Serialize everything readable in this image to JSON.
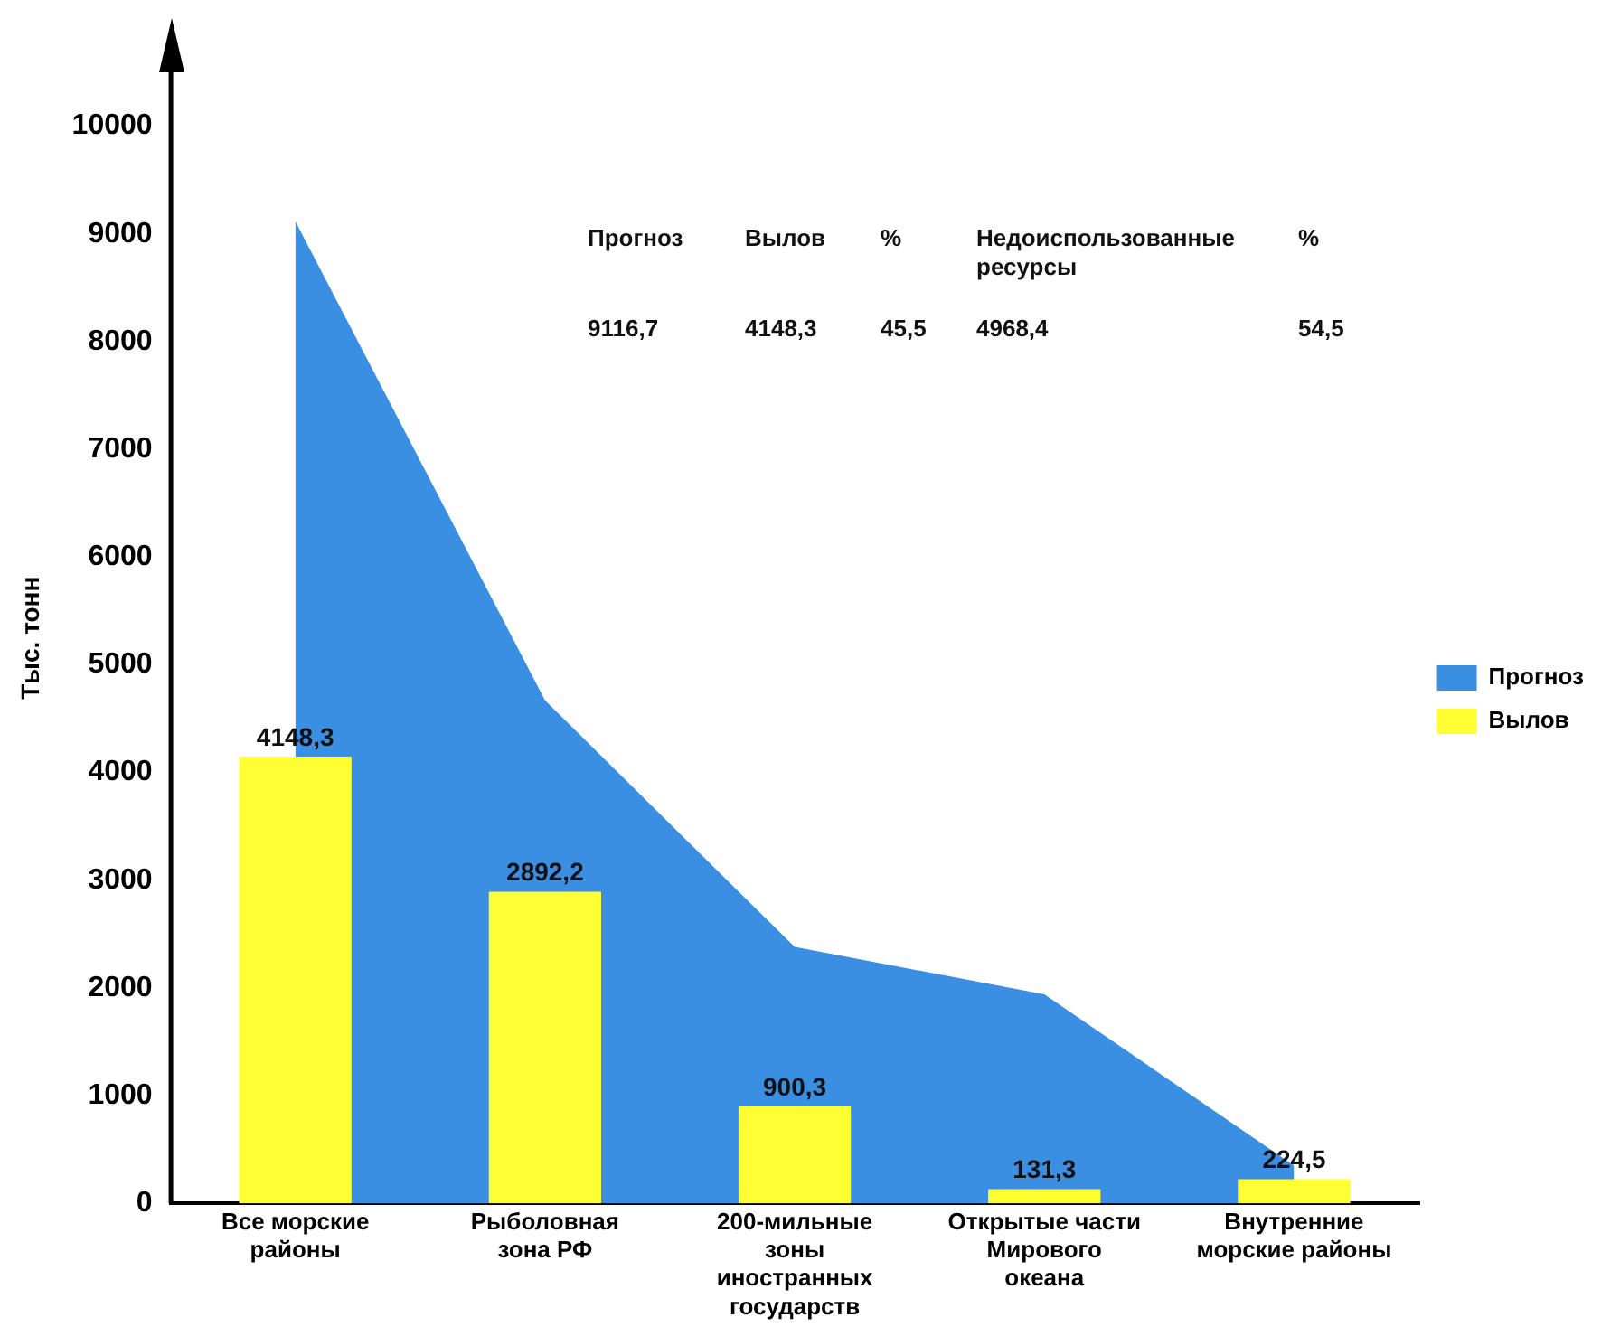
{
  "chart_data": {
    "type": "bar",
    "ylabel": "Тыс. тонн",
    "categories": [
      "Все морские районы",
      "Рыболовная зона РФ",
      "200-мильные зоны иностранных государств",
      "Открытые части Мирового океана",
      "Внутренние морские районы"
    ],
    "series": [
      {
        "name": "Прогноз",
        "type": "area",
        "color": "#3a8fe3",
        "values": [
          9116.7,
          4670,
          2380,
          1940,
          350
        ]
      },
      {
        "name": "Вылов",
        "color": "#ffff33",
        "values": [
          4148.3,
          2892.2,
          900.3,
          131.3,
          224.5
        ],
        "value_labels": [
          "4148,3",
          "2892,2",
          "900,3",
          "131,3",
          "224,5"
        ]
      }
    ],
    "ylim": [
      0,
      10500
    ],
    "yticks": [
      0,
      1000,
      2000,
      3000,
      4000,
      5000,
      6000,
      7000,
      8000,
      9000,
      10000
    ],
    "grid": false,
    "legend": "right",
    "annotations": [
      "Прогноз",
      "Вылов",
      "%",
      "Недоиспользованные ресурсы",
      "%",
      "9116,7",
      "4148,3",
      "45,5",
      "4968,4",
      "54,5"
    ]
  }
}
